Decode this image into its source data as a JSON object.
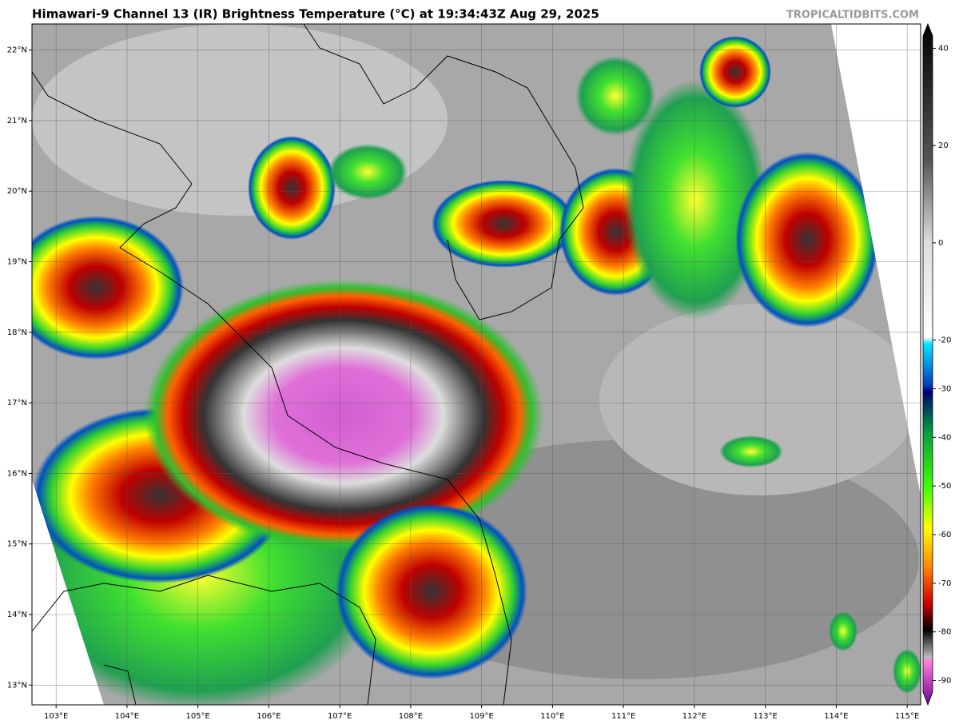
{
  "title": "Himawari-9 Channel 13 (IR) Brightness Temperature (°C) at 19:34:43Z Aug 29, 2025",
  "watermark": "TROPICALTIDBITS.COM",
  "map": {
    "xlim": [
      102.66,
      115.19
    ],
    "ylim": [
      12.72,
      22.37
    ],
    "xticks": [
      {
        "value": 103,
        "label": "103°E"
      },
      {
        "value": 104,
        "label": "104°E"
      },
      {
        "value": 105,
        "label": "105°E"
      },
      {
        "value": 106,
        "label": "106°E"
      },
      {
        "value": 107,
        "label": "107°E"
      },
      {
        "value": 108,
        "label": "108°E"
      },
      {
        "value": 109,
        "label": "109°E"
      },
      {
        "value": 110,
        "label": "110°E"
      },
      {
        "value": 111,
        "label": "111°E"
      },
      {
        "value": 112,
        "label": "112°E"
      },
      {
        "value": 113,
        "label": "113°E"
      },
      {
        "value": 114,
        "label": "114°E"
      },
      {
        "value": 115,
        "label": "115°E"
      }
    ],
    "yticks": [
      {
        "value": 13,
        "label": "13°N"
      },
      {
        "value": 14,
        "label": "14°N"
      },
      {
        "value": 15,
        "label": "15°N"
      },
      {
        "value": 16,
        "label": "16°N"
      },
      {
        "value": 17,
        "label": "17°N"
      },
      {
        "value": 18,
        "label": "18°N"
      },
      {
        "value": 19,
        "label": "19°N"
      },
      {
        "value": 20,
        "label": "20°N"
      },
      {
        "value": 21,
        "label": "21°N"
      },
      {
        "value": 22,
        "label": "22°N"
      }
    ]
  },
  "colorbar": {
    "lim": [
      -95,
      45
    ],
    "ticks": [
      40,
      20,
      0,
      -20,
      -30,
      -40,
      -50,
      -60,
      -70,
      -80,
      -90
    ]
  }
}
